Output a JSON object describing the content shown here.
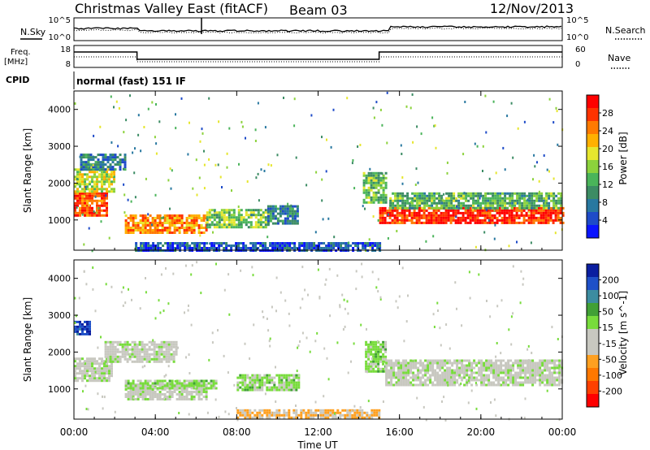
{
  "header": {
    "title": "Christmas Valley East (fitACF)",
    "beam": "Beam 03",
    "date": "12/Nov/2013"
  },
  "panels": {
    "nsky_label": "N.Sky",
    "nsearch_label": "N.Search",
    "freq_label": "Freq.",
    "freq_unit": "[MHz]",
    "nave_label": "Nave",
    "cpid_label": "CPID",
    "cpid_value": "normal (fast) 151 IF",
    "noise_ticks": [
      "10^5",
      "10^0"
    ],
    "freq_ticks": [
      "18",
      "8"
    ],
    "nave_ticks": [
      "60",
      "0"
    ]
  },
  "colorbars": {
    "power": {
      "label": "Power [dB]",
      "ticks": [
        "28",
        "24",
        "20",
        "16",
        "12",
        "8",
        "4"
      ],
      "colors": [
        "#ff0000",
        "#ff3300",
        "#ff7a00",
        "#ffb000",
        "#e6e62e",
        "#8cd23c",
        "#4ab45a",
        "#3c8c64",
        "#2878a0",
        "#1e4bc8",
        "#0a14ff"
      ]
    },
    "velocity": {
      "label": "Velocity [m s^-1]",
      "ticks": [
        "200",
        "100",
        "50",
        "15",
        "-15",
        "-50",
        "-100",
        "-200"
      ],
      "colors": [
        "#0a1ea0",
        "#1e50c8",
        "#3c8ca0",
        "#41a036",
        "#78dc3c",
        "#c8c8c0",
        "#c8c8c0",
        "#ffa020",
        "#ff7800",
        "#ff4000",
        "#ff0000"
      ]
    }
  },
  "chart_data": [
    {
      "type": "heatmap",
      "name": "power",
      "title": "Power [dB]",
      "xlabel": "Time UT",
      "ylabel": "Slant Range [km]",
      "xlim": [
        "00:00",
        "24:00"
      ],
      "ylim": [
        180,
        4500
      ],
      "x_ticks": [
        "00:00",
        "04:00",
        "08:00",
        "12:00",
        "16:00",
        "20:00",
        "00:00"
      ],
      "y_ticks": [
        1000,
        2000,
        3000,
        4000
      ],
      "clim": [
        0,
        32
      ],
      "regions": [
        {
          "t0": 0.0,
          "t1": 1.6,
          "r0": 1150,
          "r1": 1750,
          "value": 27
        },
        {
          "t0": 0.0,
          "t1": 2.0,
          "r0": 1750,
          "r1": 2400,
          "value": 18
        },
        {
          "t0": 0.3,
          "t1": 2.5,
          "r0": 2400,
          "r1": 2800,
          "value": 8
        },
        {
          "t0": 2.5,
          "t1": 6.5,
          "r0": 650,
          "r1": 1150,
          "value": 24
        },
        {
          "t0": 6.5,
          "t1": 9.5,
          "r0": 800,
          "r1": 1300,
          "value": 15
        },
        {
          "t0": 9.5,
          "t1": 11.0,
          "r0": 900,
          "r1": 1400,
          "value": 8
        },
        {
          "t0": 14.2,
          "t1": 15.3,
          "r0": 1500,
          "r1": 2300,
          "value": 14
        },
        {
          "t0": 15.0,
          "t1": 24.0,
          "r0": 900,
          "r1": 1350,
          "value": 29
        },
        {
          "t0": 15.5,
          "t1": 24.0,
          "r0": 1350,
          "r1": 1750,
          "value": 13
        },
        {
          "t0": 3.0,
          "t1": 15.0,
          "r0": 200,
          "r1": 400,
          "value": 5
        }
      ]
    },
    {
      "type": "heatmap",
      "name": "velocity",
      "title": "Velocity [m s^-1]",
      "xlabel": "Time UT",
      "ylabel": "Slant Range [km]",
      "xlim": [
        "00:00",
        "24:00"
      ],
      "ylim": [
        180,
        4500
      ],
      "x_ticks": [
        "00:00",
        "04:00",
        "08:00",
        "12:00",
        "16:00",
        "20:00",
        "00:00"
      ],
      "y_ticks": [
        1000,
        2000,
        3000,
        4000
      ],
      "clim": [
        -200,
        200
      ],
      "regions": [
        {
          "t0": 0.0,
          "t1": 1.8,
          "r0": 1200,
          "r1": 1850,
          "value": 0
        },
        {
          "t0": 1.5,
          "t1": 5.0,
          "r0": 1750,
          "r1": 2300,
          "value": 0
        },
        {
          "t0": 2.5,
          "t1": 6.5,
          "r0": 700,
          "r1": 1150,
          "value": 0
        },
        {
          "t0": 2.5,
          "t1": 7.0,
          "r0": 1050,
          "r1": 1250,
          "value": 30
        },
        {
          "t0": 8.0,
          "t1": 11.0,
          "r0": 1000,
          "r1": 1400,
          "value": 30
        },
        {
          "t0": 14.3,
          "t1": 15.3,
          "r0": 1500,
          "r1": 2300,
          "value": 30
        },
        {
          "t0": 15.3,
          "t1": 24.0,
          "r0": 1100,
          "r1": 1800,
          "value": 0
        },
        {
          "t0": 8.0,
          "t1": 15.0,
          "r0": 250,
          "r1": 450,
          "value": -60
        },
        {
          "t0": 0.0,
          "t1": 0.8,
          "r0": 2500,
          "r1": 2850,
          "value": 150
        }
      ]
    }
  ]
}
